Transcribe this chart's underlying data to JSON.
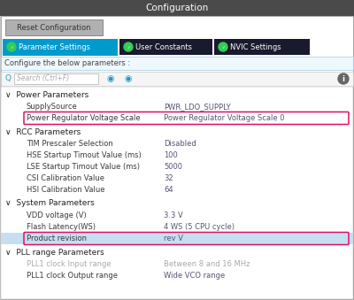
{
  "title": "Configuration",
  "title_bg": "#4a4a4a",
  "title_color": "#ffffff",
  "outer_bg": "#c8c8c8",
  "inner_bg": "#ffffff",
  "panel_border": "#aaaaaa",
  "reset_btn_bg": "#b0b0b0",
  "reset_btn_border": "#888888",
  "reset_btn_text": "#333333",
  "tab_active_bg": "#009acc",
  "tab_inactive_bg": "#1a1a2e",
  "tab_text": "#ffffff",
  "tab_icon_color": "#33cc55",
  "configure_bar_bg": "#f0f8ff",
  "configure_bar_border": "#99ccdd",
  "search_bg": "#ffffff",
  "search_border": "#bbbbbb",
  "search_text_color": "#aaaaaa",
  "arrow_color": "#2299cc",
  "info_color": "#555555",
  "section_color": "#222222",
  "row_text_color": "#3a3a3a",
  "row_grayed_color": "#aaaaaa",
  "selected_row_bg": "#c5dff0",
  "highlight_border": "#dd1166",
  "value_color": "#555577",
  "tabs": [
    {
      "label": "Parameter Settings",
      "active": true
    },
    {
      "label": "User Constants",
      "active": false
    },
    {
      "label": "NVIC Settings",
      "active": false
    }
  ],
  "sections": [
    {
      "name": "Power Parameters",
      "rows": [
        {
          "param": "SupplySource",
          "value": "PWR_LDO_SUPPLY",
          "highlight": false,
          "selected": false,
          "grayed": false
        },
        {
          "param": "Power Regulator Voltage Scale",
          "value": "Power Regulator Voltage Scale 0",
          "highlight": true,
          "selected": false,
          "grayed": false
        }
      ]
    },
    {
      "name": "RCC Parameters",
      "rows": [
        {
          "param": "TIM Prescaler Selection",
          "value": "Disabled",
          "highlight": false,
          "selected": false,
          "grayed": false
        },
        {
          "param": "HSE Startup Timout Value (ms)",
          "value": "100",
          "highlight": false,
          "selected": false,
          "grayed": false
        },
        {
          "param": "LSE Startup Timout Value (ms)",
          "value": "5000",
          "highlight": false,
          "selected": false,
          "grayed": false
        },
        {
          "param": "CSI Calibration Value",
          "value": "32",
          "highlight": false,
          "selected": false,
          "grayed": false
        },
        {
          "param": "HSI Calibration Value",
          "value": "64",
          "highlight": false,
          "selected": false,
          "grayed": false
        }
      ]
    },
    {
      "name": "System Parameters",
      "rows": [
        {
          "param": "VDD voltage (V)",
          "value": "3.3 V",
          "highlight": false,
          "selected": false,
          "grayed": false
        },
        {
          "param": "Flash Latency(WS)",
          "value": "4 WS (5 CPU cycle)",
          "highlight": false,
          "selected": false,
          "grayed": false
        },
        {
          "param": "Product revision",
          "value": "rev V",
          "highlight": true,
          "selected": true,
          "grayed": false
        }
      ]
    },
    {
      "name": "PLL range Parameters",
      "rows": [
        {
          "param": "PLL1 clock Input range",
          "value": "Between 8 and 16 MHz",
          "highlight": false,
          "selected": false,
          "grayed": true
        },
        {
          "param": "PLL1 clock Output range",
          "value": "Wide VCO range",
          "highlight": false,
          "selected": false,
          "grayed": false
        }
      ]
    }
  ]
}
